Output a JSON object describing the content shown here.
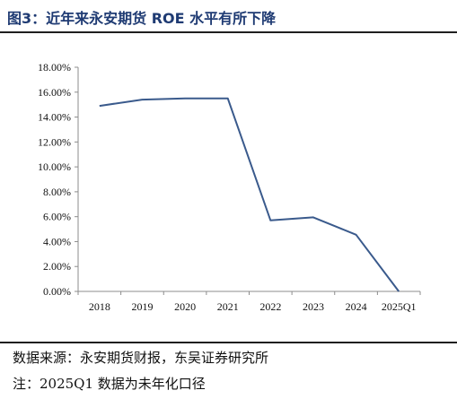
{
  "figure": {
    "title": "图3：近年来永安期货 ROE 水平有所下降",
    "source": "数据来源：永安期货财报，东吴证券研究所",
    "note": "注：2025Q1 数据为未年化口径"
  },
  "chart_data": {
    "type": "line",
    "categories": [
      "2018",
      "2019",
      "2020",
      "2021",
      "2022",
      "2023",
      "2024",
      "2025Q1"
    ],
    "series": [
      {
        "values": [
          14.9,
          15.4,
          15.5,
          15.5,
          5.7,
          5.95,
          4.55,
          0.0
        ]
      }
    ],
    "ylim": [
      0,
      18
    ],
    "yticks": [
      0,
      2,
      4,
      6,
      8,
      10,
      12,
      14,
      16,
      18
    ],
    "ytick_labels": [
      "0.00%",
      "2.00%",
      "4.00%",
      "6.00%",
      "8.00%",
      "10.00%",
      "12.00%",
      "14.00%",
      "16.00%",
      "18.00%"
    ],
    "grid": false,
    "legend": "none",
    "line_color": "#3a5a8c",
    "axis_color": "#8c8c8c"
  }
}
